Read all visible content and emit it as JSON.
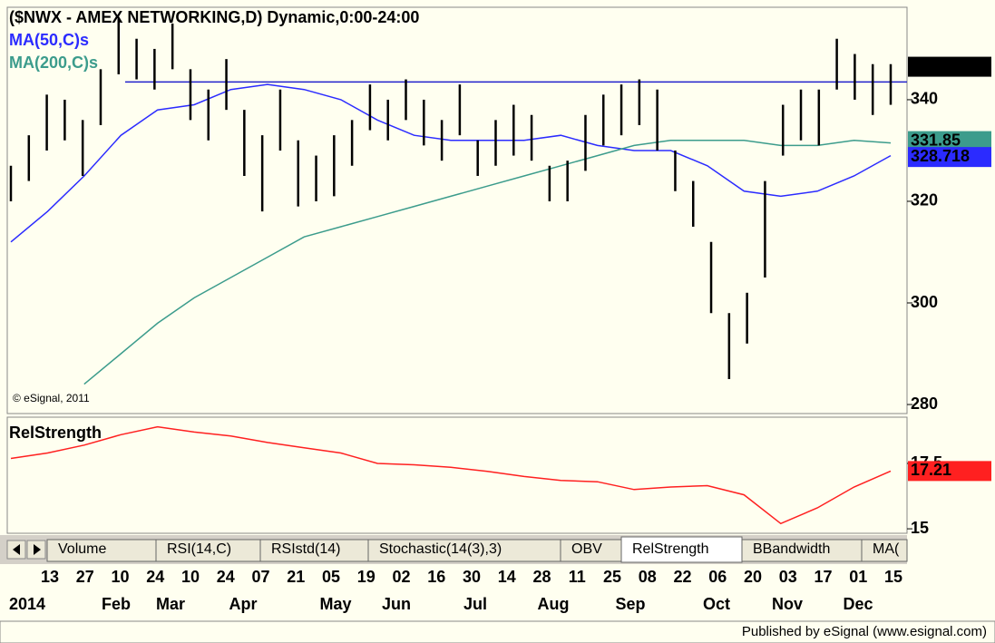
{
  "chart_data": {
    "type": "ohlc",
    "title": "($NWX - AMEX NETWORKING,D) Dynamic,0:00-24:00",
    "watermark": "© eSignal, 2011",
    "footer": "Published by eSignal (www.esignal.com)",
    "ylim": [
      278.4,
      358.2
    ],
    "yticks": [
      280,
      300,
      320,
      340
    ],
    "hline": 343.5,
    "price_last": 346.492,
    "bars": [
      [
        327,
        320
      ],
      [
        333,
        324
      ],
      [
        341,
        330
      ],
      [
        340,
        332
      ],
      [
        336,
        325
      ],
      [
        346,
        335
      ],
      [
        356,
        345
      ],
      [
        352,
        344
      ],
      [
        350,
        342
      ],
      [
        355,
        346
      ],
      [
        346,
        336
      ],
      [
        342,
        332
      ],
      [
        348,
        338
      ],
      [
        338,
        325
      ],
      [
        333,
        318
      ],
      [
        342,
        330
      ],
      [
        332,
        319
      ],
      [
        329,
        320
      ],
      [
        333,
        321
      ],
      [
        336,
        327
      ],
      [
        343,
        334
      ],
      [
        340,
        332
      ],
      [
        344,
        336
      ],
      [
        340,
        331
      ],
      [
        336,
        328
      ],
      [
        343,
        333
      ],
      [
        332,
        325
      ],
      [
        336,
        327
      ],
      [
        339,
        329
      ],
      [
        337,
        328
      ],
      [
        327,
        320
      ],
      [
        328,
        320
      ],
      [
        337,
        326
      ],
      [
        341,
        331
      ],
      [
        343,
        333
      ],
      [
        344,
        335
      ],
      [
        342,
        330
      ],
      [
        330,
        322
      ],
      [
        324,
        315
      ],
      [
        312,
        298
      ],
      [
        298,
        285
      ],
      [
        302,
        292
      ],
      [
        324,
        305
      ],
      [
        339,
        329
      ],
      [
        342,
        332
      ],
      [
        342,
        331
      ],
      [
        352,
        342
      ],
      [
        349,
        340
      ],
      [
        347,
        337
      ],
      [
        347,
        339
      ]
    ],
    "series": [
      {
        "name": "MA(50,C)s",
        "color": "#2b2bff",
        "last": 328.718,
        "values": [
          312,
          318,
          325,
          333,
          338,
          339,
          342,
          343,
          342,
          340,
          336,
          333,
          332,
          332,
          332,
          333,
          331,
          330,
          330,
          327,
          322,
          321,
          322,
          325,
          329
        ]
      },
      {
        "name": "MA(200,C)s",
        "color": "#3c9c8c",
        "last": 331.85,
        "values": [
          null,
          null,
          284,
          290,
          296,
          301,
          305,
          309,
          313,
          315,
          317,
          319,
          321,
          323,
          325,
          327,
          329,
          331,
          332,
          332,
          332,
          331,
          331,
          332,
          331.5
        ]
      }
    ],
    "rel": {
      "name": "RelStrength",
      "color": "#ff2020",
      "last": 17.21,
      "ylim": [
        14.76,
        19.2
      ],
      "yticks": [
        15,
        17.5
      ],
      "values": [
        17.69,
        17.9,
        18.2,
        18.6,
        18.9,
        18.7,
        18.55,
        18.3,
        18.1,
        17.9,
        17.5,
        17.45,
        17.35,
        17.2,
        17.0,
        16.85,
        16.8,
        16.5,
        16.6,
        16.65,
        16.3,
        15.2,
        15.8,
        16.6,
        17.21
      ]
    },
    "tabs": [
      "Volume",
      "RSI(14,C)",
      "RSIstd(14)",
      "Stochastic(14(3),3)",
      "OBV",
      "RelStrength",
      "BBandwidth",
      "MA("
    ],
    "day_labels": [
      "13",
      "27",
      "10",
      "24",
      "10",
      "24",
      "07",
      "21",
      "05",
      "19",
      "02",
      "16",
      "30",
      "14",
      "28",
      "11",
      "25",
      "08",
      "22",
      "06",
      "20",
      "03",
      "17",
      "01",
      "15"
    ],
    "month_labels": [
      "2014",
      "Feb",
      "Mar",
      "Apr",
      "May",
      "Jun",
      "Jul",
      "Aug",
      "Sep",
      "Oct",
      "Nov",
      "Dec"
    ]
  }
}
